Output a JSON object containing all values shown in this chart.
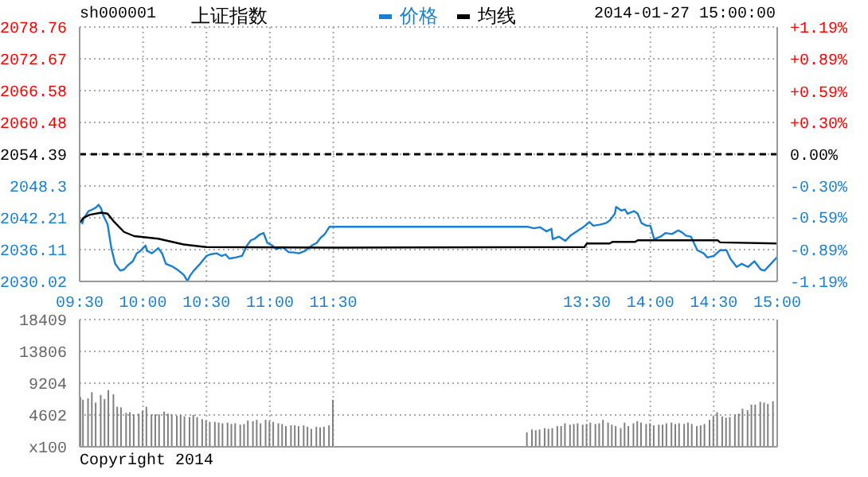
{
  "chart_data": [
    {
      "type": "line",
      "title": "上证指数",
      "subtitle": "sh000001",
      "annotations": [
        "2014-01-27 15:00:00"
      ],
      "legend": "top",
      "xlim": [
        9.5,
        15
      ],
      "xticks": [
        {
          "value": 9.5,
          "label": "09:30"
        },
        {
          "value": 10,
          "label": "10:00"
        },
        {
          "value": 10.5,
          "label": "10:30"
        },
        {
          "value": 11,
          "label": "11:00"
        },
        {
          "value": 11.5,
          "label": "11:30"
        },
        {
          "value": 13.5,
          "label": "13:30"
        },
        {
          "value": 14,
          "label": "14:00"
        },
        {
          "value": 14.5,
          "label": "14:30"
        },
        {
          "value": 15,
          "label": "15:00"
        }
      ],
      "ylim": [
        2030.02,
        2078.76
      ],
      "yticks": [
        2030.02,
        2036.11,
        2042.21,
        2048.3,
        2054.39,
        2060.48,
        2066.58,
        2072.67,
        2078.76
      ],
      "y2lim": [
        -1.19,
        1.19
      ],
      "y2ticks": [
        {
          "value": -1.19,
          "label": "-1.19%"
        },
        {
          "value": -0.89,
          "label": "-0.89%"
        },
        {
          "value": -0.59,
          "label": "-0.59%"
        },
        {
          "value": -0.3,
          "label": "-0.30%"
        },
        {
          "value": 0,
          "label": "0.00%"
        },
        {
          "value": 0.3,
          "label": "+0.30%"
        },
        {
          "value": 0.59,
          "label": "+0.59%"
        },
        {
          "value": 0.89,
          "label": "+0.89%"
        },
        {
          "value": 1.19,
          "label": "+1.19%"
        }
      ],
      "grid": true,
      "marker": "none",
      "ref_lines": [
        {
          "axis": "y",
          "value": 2054.39,
          "color": "#000000",
          "line_style": "dashed"
        }
      ],
      "series": [
        {
          "name": "价格",
          "color": "#1a7fd0",
          "x": [
            9.52,
            9.53,
            9.57,
            9.6,
            9.63,
            9.65,
            9.67,
            9.68,
            9.72,
            9.75,
            9.78,
            9.82,
            9.85,
            9.88,
            9.92,
            9.95,
            9.98,
            10.02,
            10.03,
            10.07,
            10.12,
            10.15,
            10.18,
            10.23,
            10.28,
            10.32,
            10.35,
            10.37,
            10.4,
            10.45,
            10.5,
            10.53,
            10.58,
            10.62,
            10.65,
            10.68,
            10.73,
            10.78,
            10.82,
            10.85,
            10.88,
            10.92,
            10.95,
            10.98,
            11.02,
            11.05,
            11.1,
            11.15,
            11.18,
            11.23,
            11.28,
            11.33,
            11.37,
            11.4,
            11.43,
            11.47,
            11.5,
            13.03,
            13.08,
            13.13,
            13.18,
            13.22,
            13.23,
            13.28,
            13.33,
            13.37,
            13.42,
            13.47,
            13.52,
            13.55,
            13.6,
            13.65,
            13.68,
            13.72,
            13.73,
            13.77,
            13.8,
            13.82,
            13.87,
            13.9,
            13.93,
            13.97,
            14,
            14.03,
            14.08,
            14.12,
            14.17,
            14.22,
            14.25,
            14.28,
            14.32,
            14.37,
            14.42,
            14.45,
            14.5,
            14.55,
            14.6,
            14.63,
            14.68,
            14.72,
            14.77,
            14.82,
            14.87,
            14.9,
            14.95,
            15
          ],
          "values": [
            2041.0,
            2042.0,
            2043.5,
            2043.8,
            2044.2,
            2044.7,
            2044.0,
            2043.0,
            2041.0,
            2036.4,
            2033.4,
            2032.1,
            2032.3,
            2033.1,
            2033.9,
            2035.4,
            2035.9,
            2036.9,
            2035.9,
            2035.4,
            2036.4,
            2035.4,
            2033.4,
            2032.9,
            2032.1,
            2031.3,
            2030.1,
            2031.1,
            2032.1,
            2033.4,
            2034.9,
            2035.2,
            2035.4,
            2034.9,
            2035.2,
            2034.4,
            2034.6,
            2034.9,
            2036.9,
            2037.9,
            2038.2,
            2039.0,
            2039.3,
            2037.4,
            2036.9,
            2036.2,
            2036.6,
            2035.6,
            2035.6,
            2035.4,
            2035.9,
            2036.9,
            2037.4,
            2038.4,
            2039.0,
            2040.5,
            2040.5,
            2040.5,
            2040.2,
            2040.4,
            2039.6,
            2040.1,
            2038.1,
            2038.6,
            2037.8,
            2038.8,
            2039.6,
            2040.4,
            2041.4,
            2040.7,
            2040.9,
            2041.2,
            2041.7,
            2043.0,
            2044.3,
            2043.6,
            2043.8,
            2043.0,
            2043.5,
            2043.0,
            2041.2,
            2040.7,
            2040.7,
            2038.1,
            2038.6,
            2039.3,
            2039.1,
            2039.8,
            2039.4,
            2038.8,
            2038.6,
            2036.0,
            2035.4,
            2034.6,
            2034.9,
            2036.0,
            2036.0,
            2034.4,
            2032.8,
            2033.4,
            2032.8,
            2033.9,
            2032.3,
            2032.1,
            2033.4,
            2034.7
          ]
        },
        {
          "name": "均线",
          "color": "#000000",
          "x": [
            9.5,
            9.53,
            9.58,
            9.67,
            9.72,
            9.77,
            9.85,
            9.93,
            10.12,
            10.32,
            10.5,
            11.5,
            13.48,
            13.5,
            13.68,
            13.7,
            13.88,
            13.9,
            14.53,
            14.55,
            15
          ],
          "values": [
            2041.2,
            2042.2,
            2042.8,
            2043.2,
            2043.0,
            2041.5,
            2039.5,
            2038.7,
            2038.2,
            2037.1,
            2036.6,
            2036.5,
            2036.6,
            2037.3,
            2037.3,
            2037.6,
            2037.6,
            2037.9,
            2037.9,
            2037.5,
            2037.3
          ]
        }
      ]
    },
    {
      "type": "bar",
      "annotations": [
        "Copyright 2014"
      ],
      "tick_labels": "y",
      "grid": true,
      "xlim": [
        9.5,
        15
      ],
      "xticks": [
        9.5,
        10,
        10.5,
        11,
        11.5,
        13.5,
        14,
        14.5,
        15
      ],
      "ylim": [
        0,
        18409
      ],
      "yticks": [
        {
          "value": 0,
          "label": "x100"
        },
        4602,
        9204,
        13806,
        18409
      ],
      "x": [
        9.51,
        9.53,
        9.57,
        9.6,
        9.63,
        9.67,
        9.7,
        9.73,
        9.77,
        9.8,
        9.83,
        9.87,
        9.9,
        9.93,
        9.97,
        10,
        10.03,
        10.07,
        10.1,
        10.13,
        10.17,
        10.2,
        10.23,
        10.27,
        10.3,
        10.33,
        10.37,
        10.4,
        10.43,
        10.47,
        10.5,
        10.53,
        10.57,
        10.6,
        10.63,
        10.67,
        10.7,
        10.73,
        10.77,
        10.8,
        10.83,
        10.87,
        10.9,
        10.93,
        10.97,
        11,
        11.03,
        11.07,
        11.1,
        11.13,
        11.17,
        11.2,
        11.23,
        11.27,
        11.3,
        11.33,
        11.37,
        11.4,
        11.43,
        11.47,
        11.5,
        13.03,
        13.07,
        13.1,
        13.13,
        13.17,
        13.2,
        13.23,
        13.27,
        13.3,
        13.33,
        13.37,
        13.4,
        13.43,
        13.47,
        13.5,
        13.53,
        13.57,
        13.6,
        13.63,
        13.67,
        13.7,
        13.73,
        13.77,
        13.8,
        13.83,
        13.87,
        13.9,
        13.93,
        13.97,
        14,
        14.03,
        14.07,
        14.1,
        14.13,
        14.17,
        14.2,
        14.23,
        14.27,
        14.3,
        14.33,
        14.37,
        14.4,
        14.43,
        14.47,
        14.5,
        14.53,
        14.57,
        14.6,
        14.63,
        14.67,
        14.7,
        14.73,
        14.77,
        14.8,
        14.83,
        14.87,
        14.9,
        14.93,
        14.97
      ],
      "series": [
        {
          "color": "#808080",
          "values": [
            7200,
            6800,
            7000,
            7900,
            6400,
            7500,
            6900,
            8200,
            7600,
            5800,
            5700,
            4900,
            5000,
            4700,
            4800,
            5200,
            5800,
            4700,
            4700,
            4700,
            5100,
            4800,
            4700,
            4500,
            4600,
            4400,
            4300,
            4600,
            4300,
            4000,
            3800,
            3600,
            3600,
            3500,
            3400,
            3500,
            3300,
            3400,
            3200,
            3300,
            3800,
            3700,
            3900,
            3400,
            3900,
            3700,
            3600,
            3400,
            3300,
            3000,
            3100,
            3100,
            3000,
            3100,
            2900,
            2600,
            2900,
            2800,
            2900,
            3100,
            6800,
            2100,
            2500,
            2400,
            2500,
            2700,
            2600,
            2700,
            3000,
            3000,
            3400,
            3200,
            3300,
            3400,
            3200,
            3300,
            3500,
            3300,
            3400,
            3900,
            3500,
            3200,
            3000,
            2700,
            3500,
            3000,
            3400,
            3700,
            3500,
            3300,
            3400,
            3100,
            3200,
            3200,
            3400,
            3500,
            3300,
            3400,
            3300,
            3500,
            3300,
            3000,
            3100,
            3300,
            3900,
            4400,
            5000,
            4400,
            4200,
            4300,
            4700,
            4800,
            5500,
            5300,
            6100,
            6100,
            6500,
            6400,
            6200,
            6600
          ]
        }
      ]
    }
  ]
}
